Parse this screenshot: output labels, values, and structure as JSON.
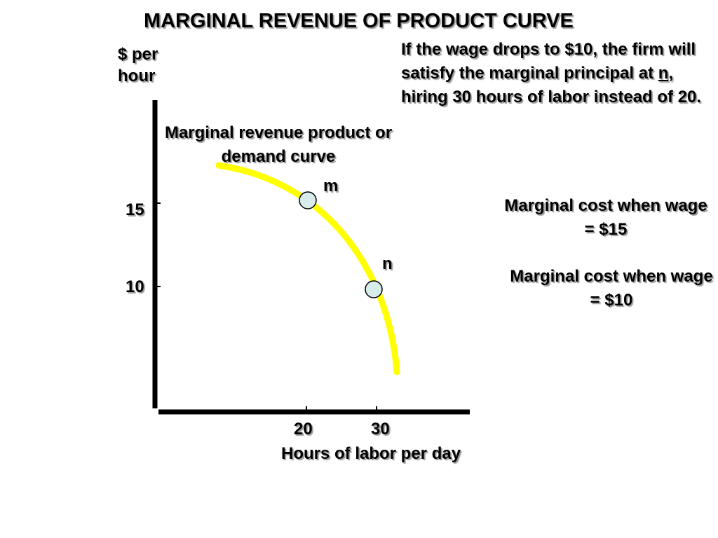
{
  "chart_data": {
    "type": "line",
    "title": "MARGINAL REVENUE OF PRODUCT CURVE",
    "ylabel": "$ per hour",
    "xlabel": "Hours of labor per day",
    "y_ticks": [
      "15",
      "10"
    ],
    "x_ticks": [
      "20",
      "30"
    ],
    "series": [
      {
        "name": "Marginal revenue product or demand curve",
        "color": "#ffff00",
        "points": [
          {
            "label": "m",
            "x": 20,
            "y": 15
          },
          {
            "label": "n",
            "x": 30,
            "y": 10
          }
        ]
      }
    ],
    "point_marker_color": "#d8ecec",
    "annotations": {
      "note_before": "If the wage drops to $10, the firm will satisfy the marginal principal at ",
      "note_point": "n",
      "note_after": ", hiring 30 hours of labor instead of 20.",
      "mc15": "Marginal cost when wage = $15",
      "mc10": "Marginal cost when wage = $10"
    }
  }
}
